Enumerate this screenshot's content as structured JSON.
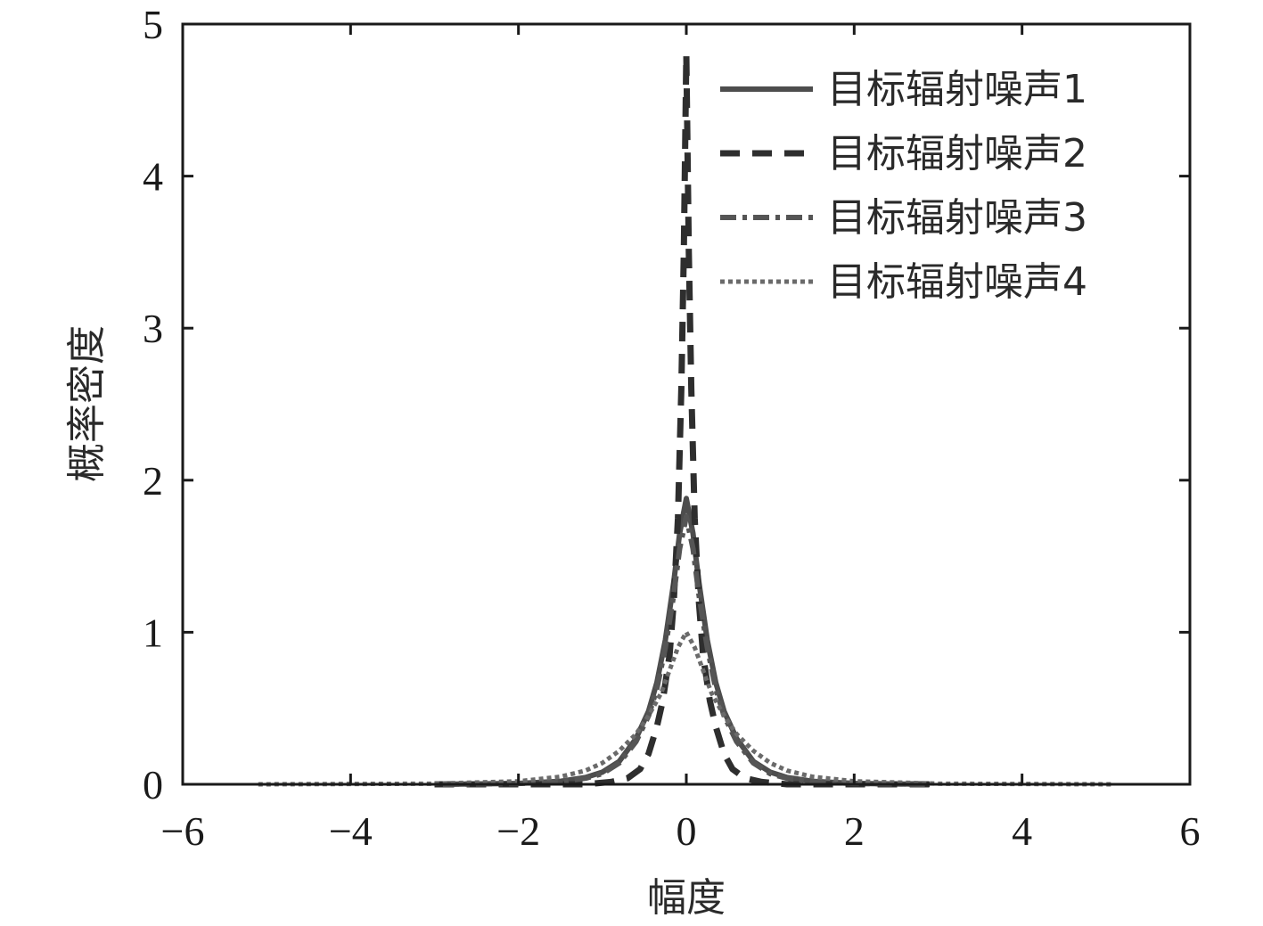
{
  "chart_data": {
    "type": "line",
    "xlabel": "幅度",
    "ylabel": "概率密度",
    "xlim": [
      -6,
      6
    ],
    "ylim": [
      0,
      5
    ],
    "xticks": [
      -6,
      -4,
      -2,
      0,
      2,
      4,
      6
    ],
    "xtick_labels": [
      "−6",
      "−4",
      "−2",
      "0",
      "2",
      "4",
      "6"
    ],
    "yticks": [
      0,
      1,
      2,
      3,
      4,
      5
    ],
    "ytick_labels": [
      "0",
      "1",
      "2",
      "3",
      "4",
      "5"
    ],
    "grid": false,
    "legend_position": "top-right",
    "series": [
      {
        "name": "目标辐射噪声1",
        "style": "solid",
        "color": "#4d4d4d",
        "x": [
          -2.9,
          -2.0,
          -1.5,
          -1.2,
          -1.0,
          -0.8,
          -0.6,
          -0.45,
          -0.35,
          -0.25,
          -0.15,
          -0.08,
          0,
          0.08,
          0.15,
          0.25,
          0.35,
          0.45,
          0.6,
          0.8,
          1.0,
          1.2,
          1.5,
          2.0,
          2.9
        ],
        "y": [
          0.0,
          0.006,
          0.02,
          0.045,
          0.08,
          0.15,
          0.3,
          0.48,
          0.67,
          0.95,
          1.33,
          1.65,
          1.88,
          1.65,
          1.33,
          0.95,
          0.67,
          0.48,
          0.3,
          0.15,
          0.08,
          0.045,
          0.02,
          0.006,
          0.0
        ]
      },
      {
        "name": "目标辐射噪声2",
        "style": "dashed",
        "color": "#2e2e2e",
        "x": [
          -3.0,
          -1.2,
          -0.9,
          -0.7,
          -0.55,
          -0.45,
          -0.35,
          -0.28,
          -0.2,
          -0.15,
          -0.1,
          -0.06,
          -0.03,
          -0.015,
          0,
          0.015,
          0.03,
          0.06,
          0.1,
          0.15,
          0.2,
          0.28,
          0.35,
          0.45,
          0.55,
          0.7,
          0.9,
          1.2,
          3.0
        ],
        "y": [
          0.0,
          0.0,
          0.015,
          0.04,
          0.1,
          0.2,
          0.38,
          0.55,
          0.85,
          1.2,
          1.75,
          2.6,
          3.5,
          4.15,
          4.8,
          4.15,
          3.5,
          2.6,
          1.75,
          1.2,
          0.85,
          0.55,
          0.38,
          0.2,
          0.1,
          0.04,
          0.015,
          0.0,
          0.0
        ]
      },
      {
        "name": "目标辐射噪声3",
        "style": "dashdot",
        "color": "#555555",
        "x": [
          -2.9,
          -2.0,
          -1.5,
          -1.2,
          -1.0,
          -0.8,
          -0.6,
          -0.45,
          -0.35,
          -0.25,
          -0.15,
          -0.08,
          0,
          0.08,
          0.15,
          0.25,
          0.35,
          0.45,
          0.6,
          0.8,
          1.0,
          1.2,
          1.5,
          2.0,
          2.9
        ],
        "y": [
          0.0,
          0.005,
          0.018,
          0.04,
          0.07,
          0.14,
          0.28,
          0.45,
          0.63,
          0.9,
          1.25,
          1.55,
          1.76,
          1.55,
          1.25,
          0.9,
          0.63,
          0.45,
          0.28,
          0.14,
          0.07,
          0.04,
          0.018,
          0.005,
          0.0
        ]
      },
      {
        "name": "目标辐射噪声4",
        "style": "dotted",
        "color": "#6a6a6a",
        "x": [
          -5.1,
          -3.0,
          -2.0,
          -1.5,
          -1.2,
          -1.0,
          -0.8,
          -0.6,
          -0.45,
          -0.3,
          -0.2,
          -0.1,
          0,
          0.1,
          0.2,
          0.3,
          0.45,
          0.6,
          0.8,
          1.0,
          1.2,
          1.5,
          2.0,
          3.0,
          5.1
        ],
        "y": [
          0.0,
          0.004,
          0.02,
          0.05,
          0.09,
          0.14,
          0.22,
          0.33,
          0.45,
          0.6,
          0.75,
          0.9,
          1.0,
          0.9,
          0.75,
          0.6,
          0.45,
          0.33,
          0.22,
          0.14,
          0.09,
          0.05,
          0.02,
          0.004,
          0.0
        ]
      }
    ]
  }
}
